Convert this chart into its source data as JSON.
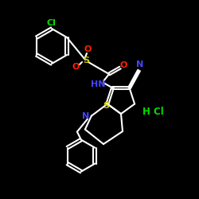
{
  "bg_color": "#000000",
  "bond_color": "#ffffff",
  "bond_width": 1.5,
  "atom_colors": {
    "Cl": "#00dd00",
    "O": "#ff2200",
    "S": "#cccc00",
    "N": "#4444ff",
    "HCl": "#00dd00"
  },
  "figsize": [
    2.5,
    2.5
  ],
  "dpi": 100
}
